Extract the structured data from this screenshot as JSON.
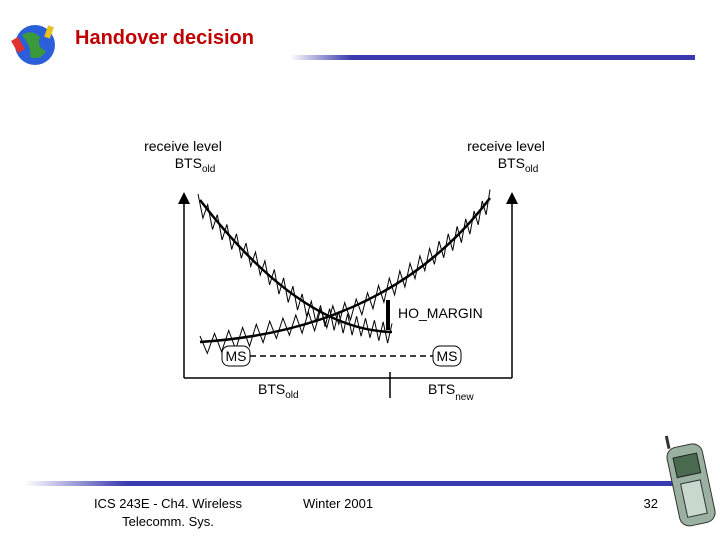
{
  "header": {
    "title": "Handover decision"
  },
  "diagram": {
    "left_axis_label": {
      "line1": "receive level",
      "main": "BTS",
      "sub": "old"
    },
    "right_axis_label": {
      "line1": "receive level",
      "main": "BTS",
      "sub": "old"
    },
    "margin_label": "HO_MARGIN",
    "ms_left": "MS",
    "ms_right": "MS",
    "bts_old": {
      "main": "BTS",
      "sub": "old"
    },
    "bts_new": {
      "main": "BTS",
      "sub": "new"
    }
  },
  "footer": {
    "course": [
      "ICS 243E - Ch4. Wireless",
      "Telecomm. Sys."
    ],
    "term": "Winter 2001",
    "page": "32"
  }
}
